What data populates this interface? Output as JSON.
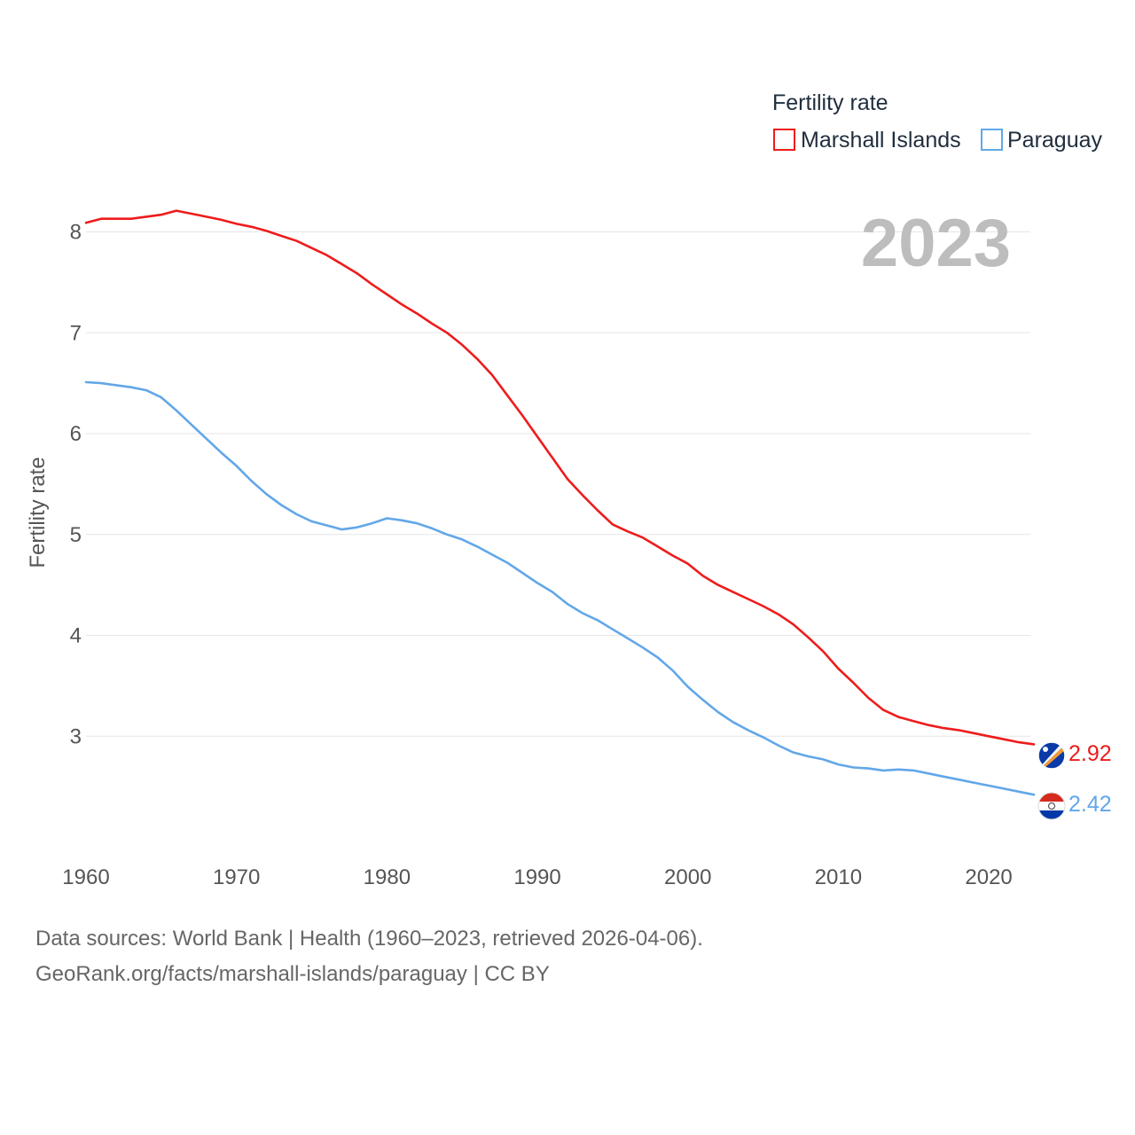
{
  "chart_data": {
    "type": "line",
    "title": "",
    "year_label": "2023",
    "xlabel": "",
    "ylabel": "Fertility rate",
    "xlim": [
      1960,
      2023
    ],
    "ylim": [
      2.0,
      8.4
    ],
    "x_ticks": [
      1960,
      1970,
      1980,
      1990,
      2000,
      2010,
      2020
    ],
    "y_ticks": [
      3,
      4,
      5,
      6,
      7,
      8
    ],
    "grid": "horizontal",
    "legend": {
      "title": "Fertility rate",
      "placement": "top-right"
    },
    "series": [
      {
        "name": "Marshall Islands",
        "color": "#ee1c1c",
        "end_label": "2.92",
        "flag_icon": "marshall-islands-flag-icon",
        "x": [
          1960,
          1961,
          1962,
          1963,
          1964,
          1965,
          1966,
          1967,
          1968,
          1969,
          1970,
          1971,
          1972,
          1973,
          1974,
          1975,
          1976,
          1977,
          1978,
          1979,
          1980,
          1981,
          1982,
          1983,
          1984,
          1985,
          1986,
          1987,
          1988,
          1989,
          1990,
          1991,
          1992,
          1993,
          1994,
          1995,
          1996,
          1997,
          1998,
          1999,
          2000,
          2001,
          2002,
          2003,
          2004,
          2005,
          2006,
          2007,
          2008,
          2009,
          2010,
          2011,
          2012,
          2013,
          2014,
          2015,
          2016,
          2017,
          2018,
          2019,
          2020,
          2021,
          2022,
          2023
        ],
        "values": [
          8.09,
          8.13,
          8.13,
          8.13,
          8.15,
          8.17,
          8.21,
          8.18,
          8.15,
          8.12,
          8.08,
          8.05,
          8.01,
          7.96,
          7.91,
          7.84,
          7.77,
          7.68,
          7.59,
          7.48,
          7.38,
          7.28,
          7.19,
          7.09,
          7.0,
          6.88,
          6.74,
          6.58,
          6.38,
          6.18,
          5.97,
          5.76,
          5.55,
          5.39,
          5.24,
          5.1,
          5.03,
          4.97,
          4.88,
          4.79,
          4.71,
          4.59,
          4.5,
          4.43,
          4.36,
          4.29,
          4.21,
          4.11,
          3.98,
          3.84,
          3.67,
          3.53,
          3.38,
          3.26,
          3.19,
          3.15,
          3.11,
          3.08,
          3.06,
          3.03,
          3.0,
          2.97,
          2.94,
          2.92
        ]
      },
      {
        "name": "Paraguay",
        "color": "#62a7e8",
        "end_label": "2.42",
        "flag_icon": "paraguay-flag-icon",
        "x": [
          1960,
          1961,
          1962,
          1963,
          1964,
          1965,
          1966,
          1967,
          1968,
          1969,
          1970,
          1971,
          1972,
          1973,
          1974,
          1975,
          1976,
          1977,
          1978,
          1979,
          1980,
          1981,
          1982,
          1983,
          1984,
          1985,
          1986,
          1987,
          1988,
          1989,
          1990,
          1991,
          1992,
          1993,
          1994,
          1995,
          1996,
          1997,
          1998,
          1999,
          2000,
          2001,
          2002,
          2003,
          2004,
          2005,
          2006,
          2007,
          2008,
          2009,
          2010,
          2011,
          2012,
          2013,
          2014,
          2015,
          2016,
          2017,
          2018,
          2019,
          2020,
          2021,
          2022,
          2023
        ],
        "values": [
          6.51,
          6.5,
          6.48,
          6.46,
          6.43,
          6.36,
          6.23,
          6.09,
          5.95,
          5.81,
          5.68,
          5.53,
          5.4,
          5.29,
          5.2,
          5.13,
          5.09,
          5.05,
          5.07,
          5.11,
          5.16,
          5.14,
          5.11,
          5.06,
          5.0,
          4.95,
          4.88,
          4.8,
          4.72,
          4.62,
          4.52,
          4.43,
          4.31,
          4.22,
          4.15,
          4.06,
          3.97,
          3.88,
          3.78,
          3.65,
          3.49,
          3.36,
          3.24,
          3.14,
          3.06,
          2.99,
          2.91,
          2.84,
          2.8,
          2.77,
          2.72,
          2.69,
          2.68,
          2.66,
          2.67,
          2.66,
          2.63,
          2.6,
          2.57,
          2.54,
          2.51,
          2.48,
          2.45,
          2.42
        ]
      }
    ]
  },
  "footer": {
    "source_line": "Data sources: World Bank | Health (1960–2023, retrieved 2026-04-06).",
    "url_line": "GeoRank.org/facts/marshall-islands/paraguay | CC BY"
  }
}
